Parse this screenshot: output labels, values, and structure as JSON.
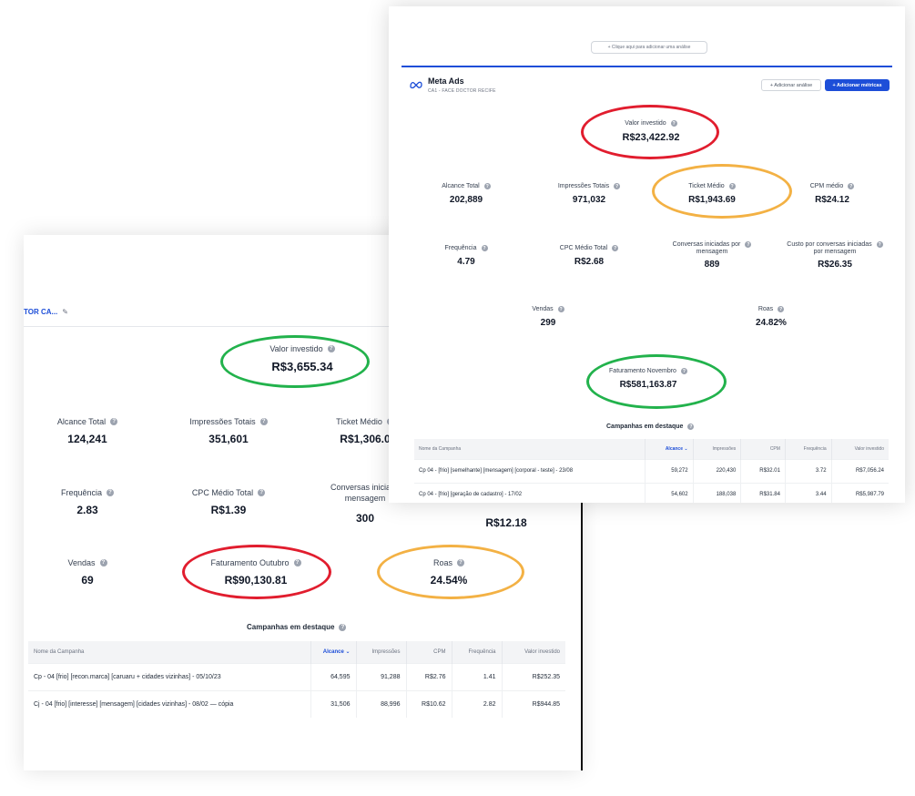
{
  "back": {
    "header_link": "TOR CA...",
    "metrics": {
      "valor_investido": {
        "label": "Valor investido",
        "value": "R$3,655.34"
      },
      "alcance_total": {
        "label": "Alcance Total",
        "value": "124,241"
      },
      "impressoes_totais": {
        "label": "Impressões Totais",
        "value": "351,601"
      },
      "ticket_medio": {
        "label": "Ticket Médio",
        "value": "R$1,306.0"
      },
      "frequencia": {
        "label": "Frequência",
        "value": "2.83"
      },
      "cpc_medio_total": {
        "label": "CPC Médio Total",
        "value": "R$1.39"
      },
      "conversas": {
        "label": "Conversas iniciada",
        "label2": "mensagem",
        "value": "300"
      },
      "custo_conversas": {
        "value": "R$12.18"
      },
      "vendas": {
        "label": "Vendas",
        "value": "69"
      },
      "faturamento": {
        "label": "Faturamento Outubro",
        "value": "R$90,130.81"
      },
      "roas": {
        "label": "Roas",
        "value": "24.54%"
      }
    },
    "campaigns_title": "Campanhas em destaque",
    "table": {
      "headers": [
        "Nome da Campanha",
        "Alcance",
        "Impressões",
        "CPM",
        "Frequência",
        "Valor investido"
      ],
      "rows": [
        [
          "Cp - 04 [frio] [recon.marca] [caruaru + cidades vizinhas] - 05/10/23",
          "64,595",
          "91,288",
          "R$2.76",
          "1.41",
          "R$252.35"
        ],
        [
          "Cj - 04 [frio] [interesse] [mensagem] [cidades vizinhas] - 08/02 — cópia",
          "31,506",
          "88,996",
          "R$10.62",
          "2.82",
          "R$944.85"
        ]
      ]
    }
  },
  "front": {
    "add_analysis_label": "+ Clique aqui para adicionar uma análise",
    "brand_title": "Meta Ads",
    "brand_subtitle": "CA1 - FACE DOCTOR RECIFE",
    "add_analysis_button": "+ Adicionar análise",
    "add_metrics_button": "+ Adicionar métricas",
    "metrics": {
      "valor_investido": {
        "label": "Valor investido",
        "value": "R$23,422.92"
      },
      "alcance_total": {
        "label": "Alcance Total",
        "value": "202,889"
      },
      "impressoes_totais": {
        "label": "Impressões Totais",
        "value": "971,032"
      },
      "ticket_medio": {
        "label": "Ticket Médio",
        "value": "R$1,943.69"
      },
      "cpm_medio": {
        "label": "CPM médio",
        "value": "R$24.12"
      },
      "frequencia": {
        "label": "Frequência",
        "value": "4.79"
      },
      "cpc_medio_total": {
        "label": "CPC Médio Total",
        "value": "R$2.68"
      },
      "conversas": {
        "label": "Conversas iniciadas por",
        "label2": "mensagem",
        "value": "889"
      },
      "custo_conversas": {
        "label": "Custo por conversas iniciadas",
        "label2": "por mensagem",
        "value": "R$26.35"
      },
      "vendas": {
        "label": "Vendas",
        "value": "299"
      },
      "roas": {
        "label": "Roas",
        "value": "24.82%"
      },
      "faturamento": {
        "label": "Faturamento Novembro",
        "value": "R$581,163.87"
      }
    },
    "campaigns_title": "Campanhas em destaque",
    "table": {
      "headers": [
        "Nome da Campanha",
        "Alcance",
        "Impressões",
        "CPM",
        "Frequência",
        "Valor investido"
      ],
      "rows": [
        [
          "Cp 04 - [frio] [semelhante] [mensagem] [corporal - teste] - 23/08",
          "59,272",
          "220,430",
          "R$32.01",
          "3.72",
          "R$7,056.24"
        ],
        [
          "Cp 04 - [frio] [geração de cadastro] - 17/02",
          "54,602",
          "188,038",
          "R$31.84",
          "3.44",
          "R$5,987.79"
        ]
      ]
    }
  },
  "colors": {
    "red_ring": "#e11d2e",
    "green_ring": "#22b24c",
    "orange_ring": "#f3b144",
    "accent_blue": "#1d4ed8"
  },
  "icons": {
    "info": "info-icon",
    "sort": "chevron-down-icon",
    "edit": "pencil-icon",
    "brand": "meta-logo"
  }
}
